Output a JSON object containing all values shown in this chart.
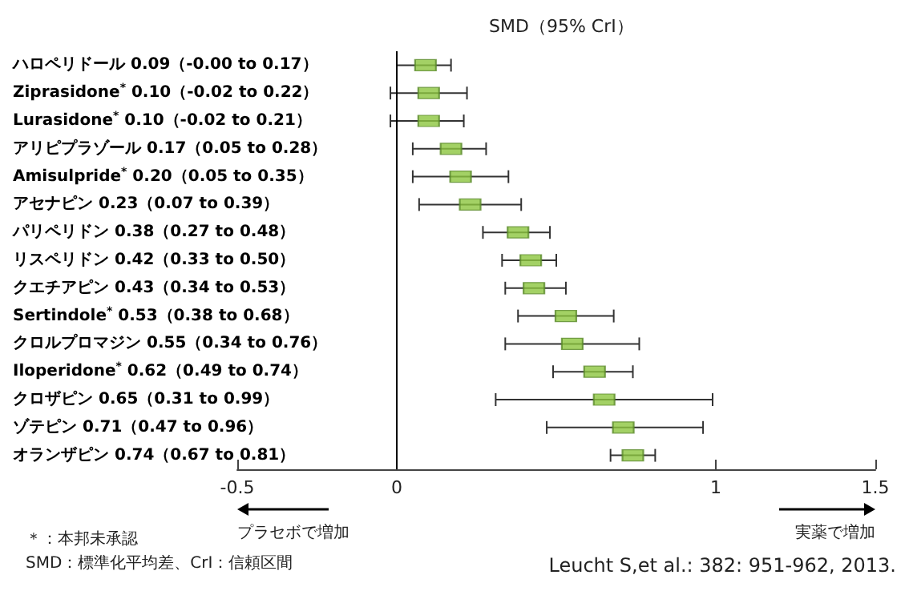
{
  "chart_data": {
    "type": "scatter",
    "orientation": "horizontal",
    "title": "SMD（95% CrI）",
    "categories": [
      "ハロペリドール 0.09（-0.00 to 0.17）",
      "Ziprasidone$^{*}$ 0.10（-0.02 to 0.22）",
      "Lurasidone$^{*}$ 0.10（-0.02 to 0.21）",
      "アリピプラゾール 0.17（0.05 to 0.28）",
      "Amisulpride$^{*}$ 0.20（0.05 to 0.35）",
      "アセナピン 0.23（0.07 to 0.39）",
      "パリペリドン 0.38（0.27 to 0.48）",
      "リスペリドン 0.42（0.33 to 0.50）",
      "クエチアピン 0.43（0.34 to 0.53）",
      "Sertindole$^{*}$ 0.53（0.38 to 0.68）",
      "クロルプロマジン 0.55（0.34 to 0.76）",
      "Iloperidone$^{*}$ 0.62（0.49 to 0.74）",
      "クロザピン 0.65（0.31 to 0.99）",
      "ゾテピン 0.71（0.47 to 0.96）",
      "オランザピン 0.74（0.67 to 0.81）"
    ],
    "values": [
      0.09,
      0.1,
      0.1,
      0.17,
      0.2,
      0.23,
      0.38,
      0.42,
      0.43,
      0.53,
      0.55,
      0.62,
      0.65,
      0.71,
      0.74
    ],
    "errors": [
      [
        0,
        0.17
      ],
      [
        -0.02,
        0.22
      ],
      [
        -0.02,
        0.21
      ],
      [
        0.05,
        0.28
      ],
      [
        0.05,
        0.35
      ],
      [
        0.07,
        0.39
      ],
      [
        0.27,
        0.48
      ],
      [
        0.33,
        0.5
      ],
      [
        0.34,
        0.53
      ],
      [
        0.38,
        0.68
      ],
      [
        0.34,
        0.76
      ],
      [
        0.49,
        0.74
      ],
      [
        0.31,
        0.99
      ],
      [
        0.47,
        0.96
      ],
      [
        0.67,
        0.81
      ]
    ],
    "color": "#8cc63f",
    "marker": "square",
    "xlim": [
      -0.5,
      1.5
    ],
    "xticks": [
      -0.5,
      0,
      1,
      1.5
    ],
    "grid": false,
    "ref_lines": [
      {
        "axis": "x",
        "value": 0,
        "color": "#000000"
      }
    ],
    "annotations": [
      "プラセボで増加",
      "実薬で増加",
      "＊：本邦未承認",
      "SMD：標準化平均差、CrI：信頼区間",
      "Leucht S,et al.: 382: 951-962, 2013."
    ]
  }
}
